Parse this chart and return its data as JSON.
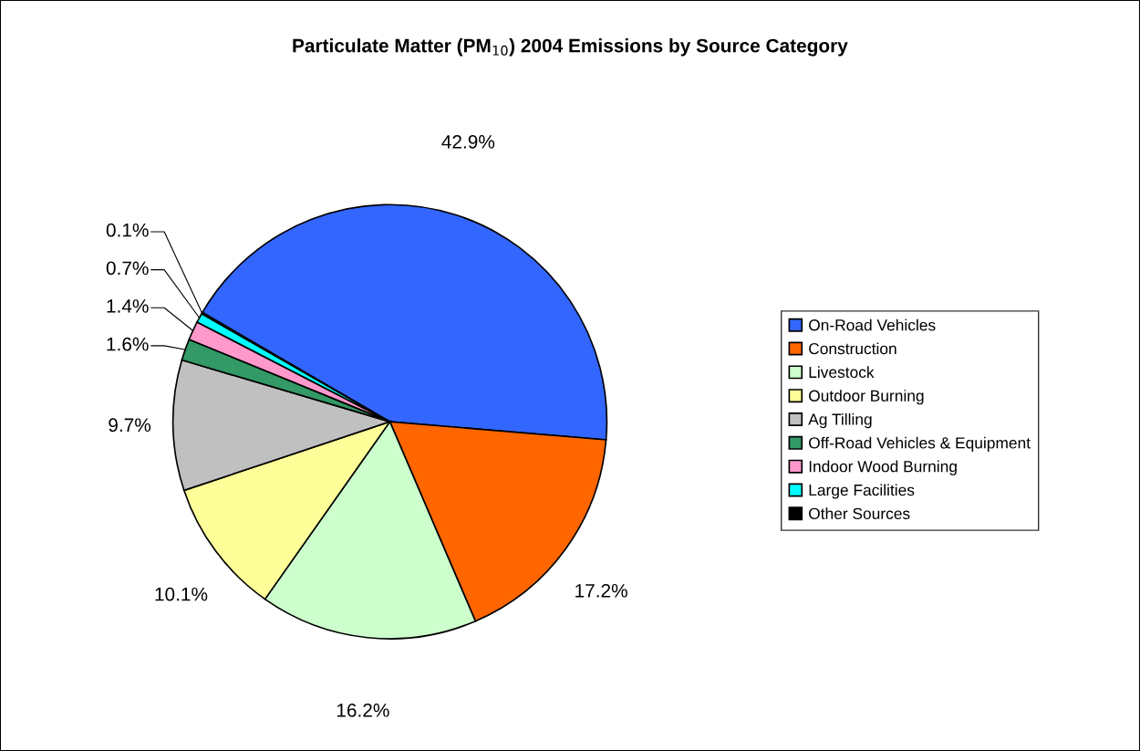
{
  "chart_data": {
    "type": "pie",
    "title": "Particulate Matter (PM$_{10}$) 2004 Emissions by Source Category",
    "categories": [
      "On-Road Vehicles",
      "Construction",
      "Livestock",
      "Outdoor Burning",
      "Ag Tilling",
      "Off-Road Vehicles & Equipment",
      "Indoor Wood Burning",
      "Large Facilities",
      "Other Sources"
    ],
    "values": [
      42.9,
      17.2,
      16.2,
      10.1,
      9.7,
      1.6,
      1.4,
      0.7,
      0.1
    ],
    "value_labels": [
      "42.9%",
      "17.2%",
      "16.2%",
      "10.1%",
      "9.7%",
      "1.6%",
      "1.4%",
      "0.7%",
      "0.1%"
    ],
    "colors": [
      "#3366ff",
      "#ff6600",
      "#ccffcc",
      "#ffff99",
      "#c0c0c0",
      "#339966",
      "#ff99cc",
      "#00ffff",
      "#000000"
    ],
    "legend": "right"
  }
}
